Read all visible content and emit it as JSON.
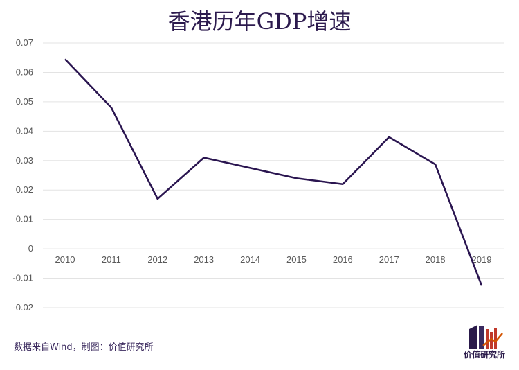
{
  "chart_data": {
    "type": "line",
    "title": "香港历年GDP增速",
    "categories": [
      "2010",
      "2011",
      "2012",
      "2013",
      "2014",
      "2015",
      "2016",
      "2017",
      "2018",
      "2019"
    ],
    "series": [
      {
        "values": [
          0.0645,
          0.048,
          0.017,
          0.031,
          0.0275,
          0.024,
          0.022,
          0.038,
          0.0287,
          -0.0125
        ]
      }
    ],
    "yticks": [
      "0.07",
      "0.06",
      "0.05",
      "0.04",
      "0.03",
      "0.02",
      "0.01",
      "0",
      "-0.01",
      "-0.02"
    ],
    "ylim": [
      -0.02,
      0.07
    ],
    "grid": true,
    "line_color": "#2a1550"
  },
  "footer": {
    "source": "数据来自Wind，制图：价值研究所",
    "logo_text": "价值研究所"
  }
}
